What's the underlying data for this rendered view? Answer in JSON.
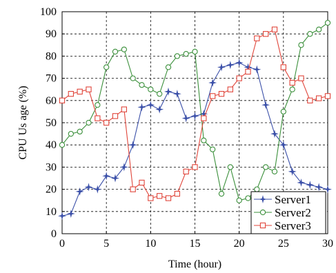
{
  "chart_data": {
    "type": "line",
    "title": "",
    "xlabel": "Time (hour)",
    "ylabel": "CPU Us age (%)",
    "xlim": [
      0,
      30
    ],
    "ylim": [
      0,
      100
    ],
    "xticks": [
      0,
      5,
      10,
      15,
      20,
      25,
      30
    ],
    "yticks": [
      0,
      10,
      20,
      30,
      40,
      50,
      60,
      70,
      80,
      90,
      100
    ],
    "grid": true,
    "legend_position": "bottom-right",
    "x": [
      0,
      1,
      2,
      3,
      4,
      5,
      6,
      7,
      8,
      9,
      10,
      11,
      12,
      13,
      14,
      15,
      16,
      17,
      18,
      19,
      20,
      21,
      22,
      23,
      24,
      25,
      26,
      27,
      28,
      29,
      30
    ],
    "series": [
      {
        "name": "Server1",
        "color": "#3a4fa8",
        "marker": "star",
        "values": [
          8,
          9,
          19,
          21,
          20,
          26,
          25,
          30,
          40,
          57,
          58,
          56,
          64,
          63,
          52,
          53,
          54,
          68,
          75,
          76,
          77,
          75,
          74,
          58,
          45,
          40,
          28,
          23,
          22,
          21,
          20
        ]
      },
      {
        "name": "Server2",
        "color": "#3a8f3a",
        "marker": "circle",
        "values": [
          40,
          45,
          46,
          50,
          58,
          75,
          82,
          83,
          70,
          67,
          65,
          63,
          75,
          80,
          81,
          82,
          42,
          38,
          18,
          30,
          15,
          16,
          20,
          30,
          28,
          55,
          65,
          85,
          90,
          92,
          95
        ]
      },
      {
        "name": "Server3",
        "color": "#e0453a",
        "marker": "square",
        "values": [
          60,
          63,
          64,
          65,
          52,
          50,
          53,
          56,
          20,
          23,
          16,
          17,
          16,
          18,
          28,
          30,
          52,
          62,
          63,
          65,
          70,
          73,
          88,
          90,
          92,
          75,
          68,
          70,
          60,
          61,
          62
        ]
      }
    ]
  }
}
